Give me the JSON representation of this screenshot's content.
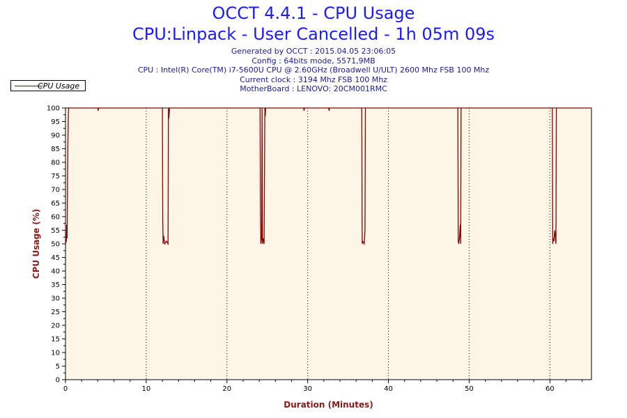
{
  "header": {
    "title_line1": "OCCT 4.4.1 - CPU Usage",
    "title_line2": "CPU:Linpack - User Cancelled - 1h 05m 09s",
    "info_lines": [
      "Generated by OCCT : 2015.04.05 23:06:05",
      "Config : 64bits mode, 5571,9MB",
      "CPU : Intel(R) Core(TM) i7-5600U CPU @ 2.60GHz (Broadwell U/ULT) 2600 Mhz FSB 100 Mhz",
      "Current clock : 3194 Mhz FSB 100 Mhz",
      "MotherBoard : LENOVO: 20CM001RMC"
    ]
  },
  "chart_data": {
    "type": "line",
    "title": "OCCT 4.4.1 - CPU Usage",
    "xlabel": "Duration (Minutes)",
    "ylabel": "CPU Usage (%)",
    "xlim": [
      0,
      65.15
    ],
    "ylim": [
      0,
      100
    ],
    "x_ticks": [
      0,
      10,
      20,
      30,
      40,
      50,
      60
    ],
    "y_ticks": [
      0,
      5,
      10,
      15,
      20,
      25,
      30,
      35,
      40,
      45,
      50,
      55,
      60,
      65,
      70,
      75,
      80,
      85,
      90,
      95,
      100
    ],
    "grid": "vertical dotted at major x ticks",
    "legend": "top-left",
    "colors": {
      "series": "#8b0000",
      "plot_bg": "#fdf5e6",
      "axis_title": "#8b1a1a",
      "title": "#1a1aff"
    },
    "series": [
      {
        "name": "CPU Usage",
        "x": [
          0,
          0.1,
          0.15,
          0.2,
          0.25,
          0.3,
          0.35,
          0.4,
          4.0,
          4.05,
          4.1,
          12.0,
          12.05,
          12.1,
          12.15,
          12.3,
          12.5,
          12.7,
          12.75,
          12.8,
          12.9,
          24.1,
          24.15,
          24.2,
          24.3,
          24.35,
          24.4,
          24.5,
          24.6,
          24.7,
          24.75,
          24.8,
          24.9,
          29.5,
          29.55,
          29.6,
          32.6,
          32.65,
          32.7,
          36.7,
          36.75,
          36.8,
          37.0,
          37.1,
          37.15,
          37.2,
          48.6,
          48.65,
          48.7,
          48.8,
          48.9,
          48.95,
          49.0,
          49.1,
          60.3,
          60.35,
          60.4,
          60.5,
          60.6,
          60.75,
          60.8,
          60.9,
          65.15
        ],
        "values": [
          50,
          51,
          57,
          52,
          72,
          88,
          97,
          100,
          100,
          99,
          100,
          100,
          59,
          50,
          53,
          50,
          51,
          50,
          100,
          96,
          100,
          100,
          61,
          50,
          52,
          100,
          50,
          52,
          50,
          100,
          97,
          100,
          100,
          100,
          99,
          100,
          100,
          99,
          100,
          100,
          50,
          51,
          50,
          55,
          100,
          100,
          100,
          51,
          50,
          52,
          57,
          50,
          100,
          100,
          100,
          50,
          52,
          51,
          55,
          50,
          100,
          100,
          100
        ]
      }
    ]
  }
}
